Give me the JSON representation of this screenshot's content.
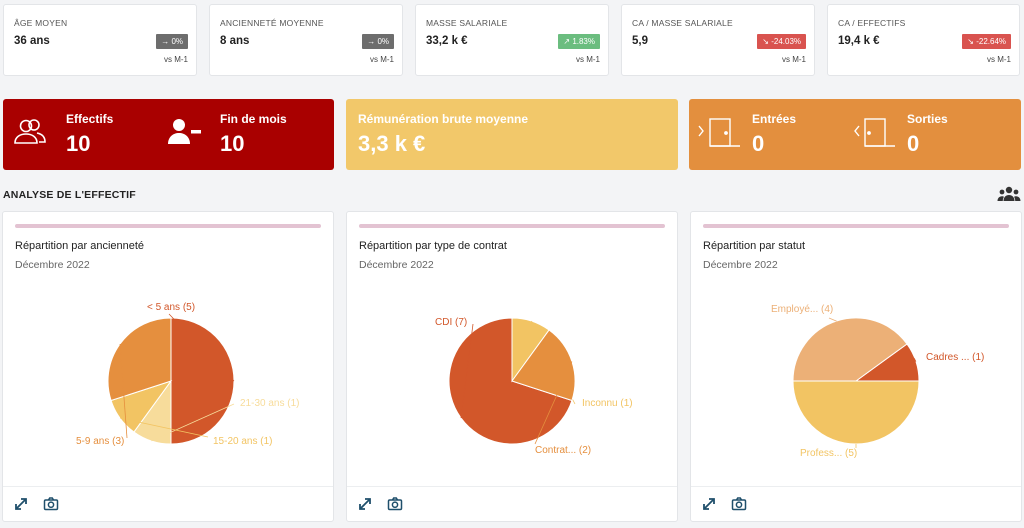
{
  "kpis": [
    {
      "label": "Âge moyen",
      "value": "36 ans",
      "badge": "0%",
      "trend": "neutral",
      "arrow": "→",
      "compare": "vs M-1"
    },
    {
      "label": "Ancienneté moyenne",
      "value": "8 ans",
      "badge": "0%",
      "trend": "neutral",
      "arrow": "→",
      "compare": "vs M-1"
    },
    {
      "label": "Masse salariale",
      "value": "33,2 k €",
      "badge": "1.83%",
      "trend": "up",
      "arrow": "↗",
      "compare": "vs M-1"
    },
    {
      "label": "CA / Masse salariale",
      "value": "5,9",
      "badge": "-24.03%",
      "trend": "down",
      "arrow": "↘",
      "compare": "vs M-1"
    },
    {
      "label": "CA / Effectifs",
      "value": "19,4 k €",
      "badge": "-22.64%",
      "trend": "down",
      "arrow": "↘",
      "compare": "vs M-1"
    }
  ],
  "bands": {
    "effectifs": {
      "title": "Effectifs",
      "value": "10",
      "icon": "users-icon",
      "color": "#a90000"
    },
    "fin_de_mois": {
      "title": "Fin de mois",
      "value": "10",
      "icon": "user-minus-icon"
    },
    "remuneration": {
      "title": "Rémunération brute moyenne",
      "value": "3,3 k €",
      "color": "#f2c86a"
    },
    "entrees": {
      "title": "Entrées",
      "value": "0",
      "icon": "door-enter-icon",
      "color": "#e38f3e"
    },
    "sorties": {
      "title": "Sorties",
      "value": "0",
      "icon": "door-exit-icon"
    }
  },
  "section": {
    "title": "ANALYSE DE L'EFFECTIF",
    "icon": "group-icon"
  },
  "cards": [
    {
      "title": "Répartition par ancienneté",
      "subtitle": "Décembre 2022"
    },
    {
      "title": "Répartition par type de contrat",
      "subtitle": "Décembre 2022"
    },
    {
      "title": "Répartition par statut",
      "subtitle": "Décembre 2022"
    }
  ],
  "chart_data": [
    {
      "type": "pie",
      "slices": [
        {
          "label": "< 5 ans (5)",
          "value": 5,
          "color": "#d2572a"
        },
        {
          "label": "21-30 ans (1)",
          "value": 1,
          "color": "#f7dc9b"
        },
        {
          "label": "15-20 ans (1)",
          "value": 1,
          "color": "#f2c463"
        },
        {
          "label": "5-9 ans (3)",
          "value": 3,
          "color": "#e58f3e"
        }
      ]
    },
    {
      "type": "pie",
      "slices": [
        {
          "label": "CDI (7)",
          "value": 7,
          "color": "#d2572a"
        },
        {
          "label": "Inconnu (1)",
          "value": 1,
          "color": "#f2c463"
        },
        {
          "label": "Contrat... (2)",
          "value": 2,
          "color": "#e58f3e"
        }
      ]
    },
    {
      "type": "pie",
      "slices": [
        {
          "label": "Cadres ... (1)",
          "value": 1,
          "color": "#d2572a"
        },
        {
          "label": "Profess... (5)",
          "value": 5,
          "color": "#f2c463"
        },
        {
          "label": "Employé... (4)",
          "value": 4,
          "color": "#ecb077"
        }
      ]
    }
  ]
}
